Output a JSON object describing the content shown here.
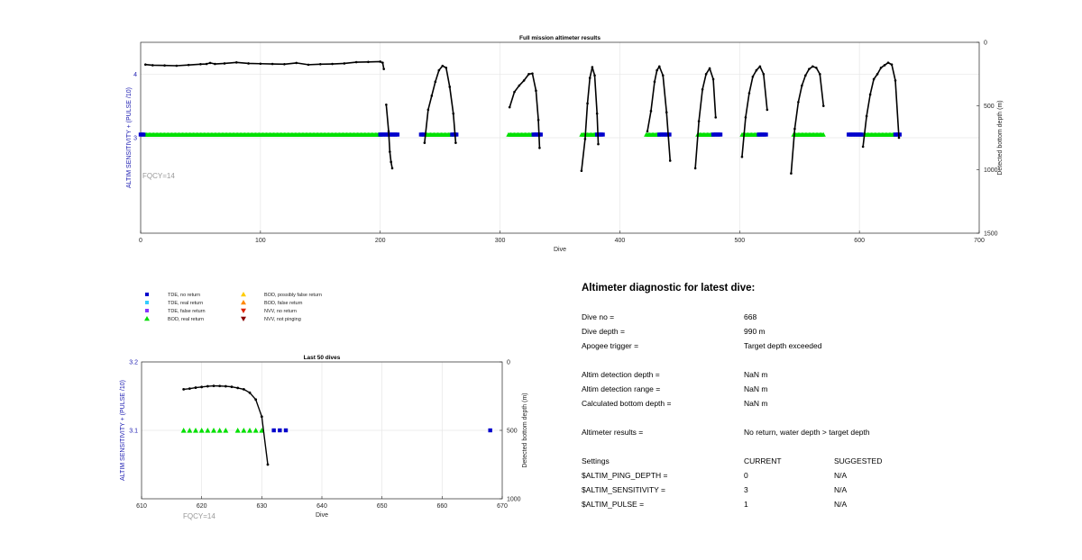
{
  "chart_data": [
    {
      "type": "line",
      "title": "Full mission altimeter results",
      "xlabel": "Dive",
      "ylabel_left": "ALTIM SENSITIVITY + (PULSE /10)",
      "ylabel_right": "Detected bottom depth (m)",
      "xlim": [
        0,
        700
      ],
      "ylim_left": [
        1.5,
        4.5
      ],
      "ylim_right_inverted": [
        0,
        1500
      ],
      "x_ticks": [
        "0",
        "100",
        "200",
        "300",
        "400",
        "500",
        "600",
        "700"
      ],
      "y_left_ticks": [
        "3",
        "4"
      ],
      "y_right_ticks": [
        "0",
        "500",
        "1000",
        "1500"
      ],
      "annotation": "FQCY=14",
      "grid": true,
      "depth_segments": [
        [
          [
            4,
            175
          ],
          [
            10,
            180
          ],
          [
            20,
            182
          ],
          [
            30,
            184
          ],
          [
            40,
            178
          ],
          [
            50,
            172
          ],
          [
            55,
            170
          ],
          [
            58,
            162
          ],
          [
            62,
            170
          ],
          [
            70,
            166
          ],
          [
            80,
            158
          ],
          [
            90,
            166
          ],
          [
            100,
            168
          ],
          [
            110,
            170
          ],
          [
            120,
            172
          ],
          [
            130,
            162
          ],
          [
            140,
            176
          ],
          [
            150,
            172
          ],
          [
            160,
            170
          ],
          [
            170,
            166
          ],
          [
            180,
            156
          ],
          [
            190,
            154
          ],
          [
            200,
            152
          ],
          [
            202,
            160
          ],
          [
            203,
            210
          ]
        ],
        [
          [
            205,
            490
          ],
          [
            207,
            700
          ],
          [
            208,
            860
          ],
          [
            209,
            940
          ],
          [
            210,
            990
          ]
        ],
        [
          [
            237,
            790
          ],
          [
            240,
            530
          ],
          [
            243,
            420
          ],
          [
            246,
            310
          ],
          [
            249,
            220
          ],
          [
            252,
            185
          ],
          [
            255,
            200
          ],
          [
            258,
            350
          ],
          [
            261,
            560
          ],
          [
            263,
            790
          ]
        ],
        [
          [
            308,
            510
          ],
          [
            312,
            390
          ],
          [
            316,
            340
          ],
          [
            320,
            300
          ],
          [
            324,
            250
          ],
          [
            327,
            245
          ],
          [
            330,
            380
          ],
          [
            332,
            610
          ],
          [
            333,
            830
          ]
        ],
        [
          [
            368,
            1010
          ],
          [
            371,
            760
          ],
          [
            373,
            480
          ],
          [
            375,
            280
          ],
          [
            377,
            195
          ],
          [
            379,
            260
          ],
          [
            381,
            560
          ],
          [
            382,
            800
          ]
        ],
        [
          [
            423,
            700
          ],
          [
            426,
            540
          ],
          [
            429,
            310
          ],
          [
            431,
            220
          ],
          [
            433,
            190
          ],
          [
            436,
            260
          ],
          [
            439,
            550
          ],
          [
            442,
            930
          ]
        ],
        [
          [
            463,
            990
          ],
          [
            466,
            620
          ],
          [
            469,
            370
          ],
          [
            472,
            250
          ],
          [
            475,
            205
          ],
          [
            478,
            290
          ],
          [
            480,
            590
          ]
        ],
        [
          [
            502,
            900
          ],
          [
            505,
            590
          ],
          [
            508,
            400
          ],
          [
            511,
            270
          ],
          [
            514,
            220
          ],
          [
            517,
            190
          ],
          [
            520,
            250
          ],
          [
            523,
            530
          ]
        ],
        [
          [
            543,
            1030
          ],
          [
            546,
            680
          ],
          [
            549,
            470
          ],
          [
            552,
            340
          ],
          [
            555,
            260
          ],
          [
            558,
            210
          ],
          [
            561,
            190
          ],
          [
            564,
            200
          ],
          [
            567,
            250
          ],
          [
            570,
            500
          ]
        ],
        [
          [
            603,
            820
          ],
          [
            606,
            580
          ],
          [
            609,
            410
          ],
          [
            612,
            290
          ],
          [
            615,
            250
          ],
          [
            618,
            200
          ],
          [
            621,
            180
          ],
          [
            624,
            160
          ],
          [
            627,
            175
          ],
          [
            630,
            300
          ],
          [
            633,
            750
          ]
        ]
      ],
      "tde_markers": [
        {
          "label": "TDE, no return",
          "ranges": [
            [
              0,
              3
            ],
            [
              200,
              215
            ],
            [
              234,
              237
            ],
            [
              260,
              264
            ],
            [
              328,
              334
            ],
            [
              381,
              386
            ],
            [
              433,
              442
            ],
            [
              478,
              484
            ],
            [
              516,
              523
            ],
            [
              591,
              603
            ],
            [
              630,
              634
            ]
          ]
        }
      ],
      "bod_markers": [
        {
          "label": "BOD, real return",
          "ranges": [
            [
              4,
              200
            ],
            [
              238,
              259
            ],
            [
              307,
              327
            ],
            [
              368,
              380
            ],
            [
              422,
              432
            ],
            [
              465,
              477
            ],
            [
              502,
              515
            ],
            [
              545,
              570
            ],
            [
              603,
              629
            ]
          ]
        }
      ]
    },
    {
      "type": "line",
      "title": "Last 50 dives",
      "xlabel": "Dive",
      "ylabel_left": "ALTIM SENSITIVITY + (PULSE /10)",
      "ylabel_right": "Detected bottom depth (m)",
      "xlim": [
        610,
        670
      ],
      "ylim_left": [
        3.0,
        3.2
      ],
      "ylim_right_inverted": [
        0,
        1000
      ],
      "x_ticks": [
        "610",
        "620",
        "630",
        "640",
        "650",
        "660",
        "670"
      ],
      "y_left_ticks": [
        "3.1",
        "3.2"
      ],
      "y_right_ticks": [
        "0",
        "500",
        "1000"
      ],
      "annotation": "FQCY=14",
      "grid": true,
      "depth_line": [
        [
          617,
          200
        ],
        [
          618,
          195
        ],
        [
          619,
          188
        ],
        [
          620,
          183
        ],
        [
          621,
          178
        ],
        [
          622,
          175
        ],
        [
          623,
          176
        ],
        [
          624,
          178
        ],
        [
          625,
          182
        ],
        [
          626,
          190
        ],
        [
          627,
          200
        ],
        [
          628,
          225
        ],
        [
          629,
          275
        ],
        [
          630,
          400
        ],
        [
          631,
          750
        ]
      ],
      "bod_dives": [
        617,
        618,
        619,
        620,
        621,
        622,
        623,
        624,
        626,
        627,
        628,
        629,
        630
      ],
      "tde_dives": [
        632,
        633,
        634,
        668
      ]
    }
  ],
  "legend": [
    {
      "label": "TDE, no return",
      "marker": "square",
      "color": "#0000cc"
    },
    {
      "label": "TDE, real return",
      "marker": "square",
      "color": "#33ccff"
    },
    {
      "label": "TDE, false return",
      "marker": "square",
      "color": "#8833ff"
    },
    {
      "label": "BOD, real return",
      "marker": "triangle-up",
      "color": "#00dd00"
    },
    {
      "label": "BOD, possibly false return",
      "marker": "triangle-up",
      "color": "#ffcc00"
    },
    {
      "label": "BOD, false return",
      "marker": "triangle-up",
      "color": "#ff8800"
    },
    {
      "label": "NVV, no return",
      "marker": "triangle-down",
      "color": "#dd2200"
    },
    {
      "label": "NVV, not pinging",
      "marker": "triangle-down",
      "color": "#880000"
    }
  ],
  "diagnostic": {
    "title": "Altimeter diagnostic for latest dive:",
    "rows": [
      {
        "label": "Dive no =",
        "value": "668"
      },
      {
        "label": "Dive depth =",
        "value": "990 m"
      },
      {
        "label": "Apogee trigger =",
        "value": "Target depth exceeded"
      },
      {
        "label": "Altim detection depth =",
        "value": "NaN m"
      },
      {
        "label": "Altim detection range =",
        "value": "NaN m"
      },
      {
        "label": "Calculated bottom depth =",
        "value": "NaN m"
      },
      {
        "label": "Altimeter results =",
        "value": "No return, water depth > target depth"
      }
    ],
    "settings_header": {
      "label": "Settings",
      "current": "CURRENT",
      "suggested": "SUGGESTED"
    },
    "settings": [
      {
        "label": "$ALTIM_PING_DEPTH =",
        "current": "0",
        "suggested": "N/A"
      },
      {
        "label": "$ALTIM_SENSITIVITY =",
        "current": "3",
        "suggested": "N/A"
      },
      {
        "label": "$ALTIM_PULSE =",
        "current": "1",
        "suggested": "N/A"
      }
    ]
  }
}
